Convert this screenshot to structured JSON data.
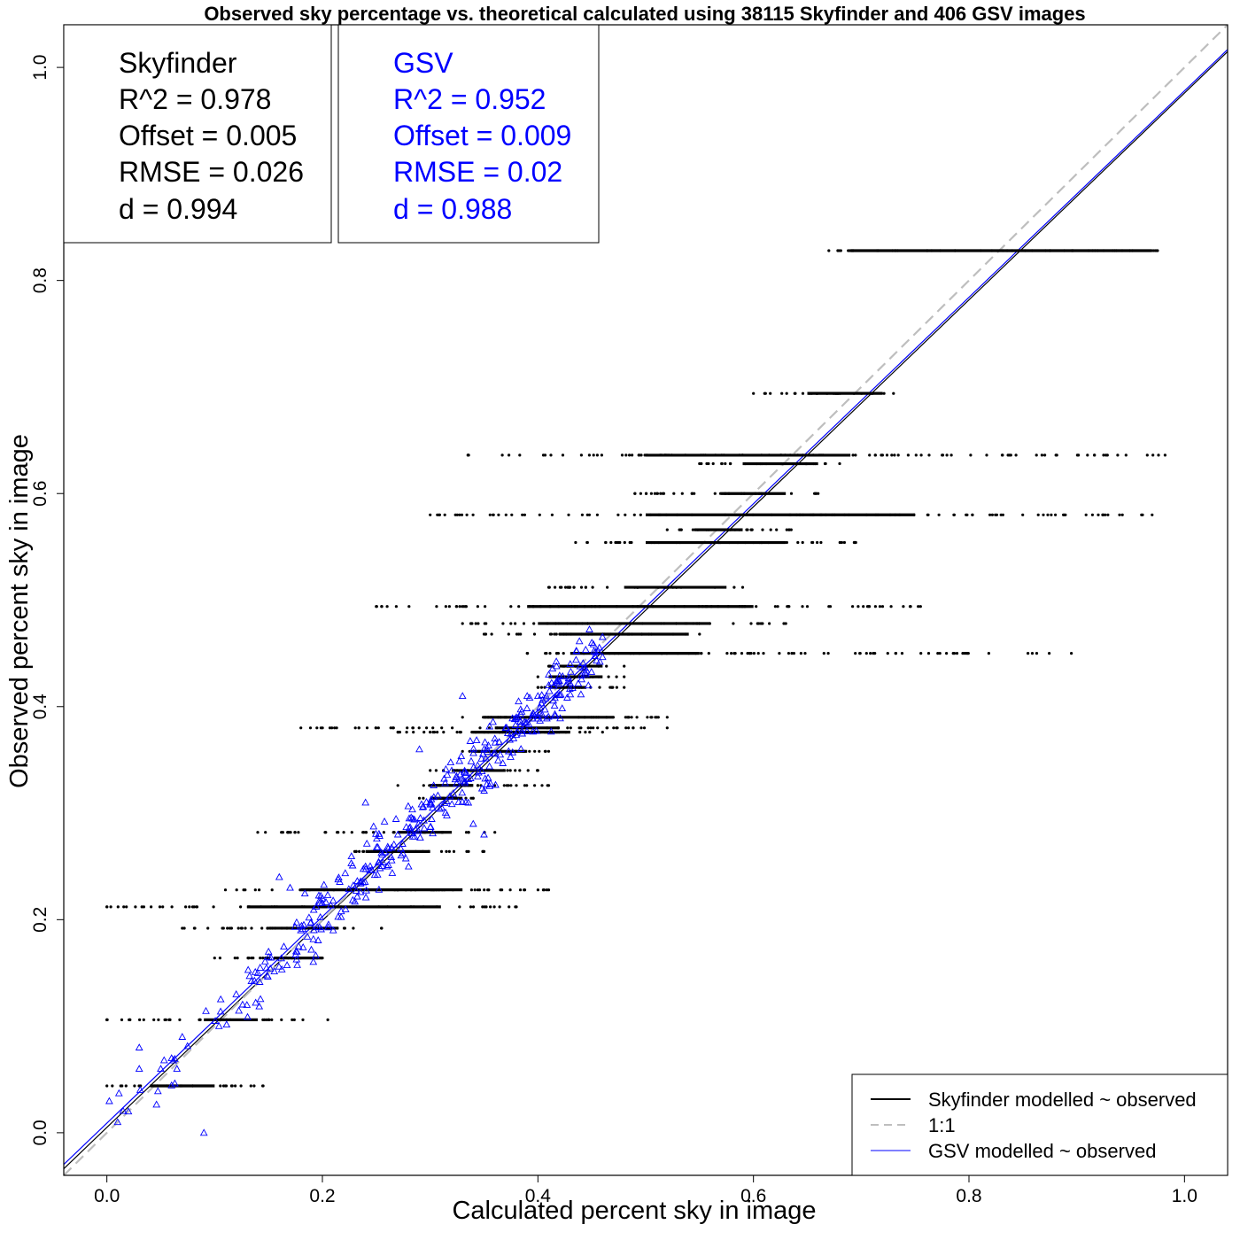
{
  "chart_data": {
    "type": "scatter",
    "title": "Observed sky percentage vs. theoretical calculated using 38115 Skyfinder and 406 GSV images",
    "xlabel": "Calculated percent sky in image",
    "ylabel": "Observed percent sky in image",
    "xlim": [
      -0.04,
      1.04
    ],
    "ylim": [
      -0.04,
      1.04
    ],
    "xticks": [
      0.0,
      0.2,
      0.4,
      0.6,
      0.8,
      1.0
    ],
    "yticks": [
      0.0,
      0.2,
      0.4,
      0.6,
      0.8,
      1.0
    ],
    "xtick_labels": [
      "0.0",
      "0.2",
      "0.4",
      "0.6",
      "0.8",
      "1.0"
    ],
    "ytick_labels": [
      "0.0",
      "0.2",
      "0.4",
      "0.6",
      "0.8",
      "1.0"
    ],
    "grid": false,
    "stat_boxes": [
      {
        "name": "Skyfinder",
        "color": "#000000",
        "lines": [
          "Skyfinder",
          "R^2 = 0.978",
          "Offset = 0.005",
          "RMSE = 0.026",
          "d = 0.994"
        ]
      },
      {
        "name": "GSV",
        "color": "#0000ff",
        "lines": [
          "GSV",
          "R^2 = 0.952",
          "Offset = 0.009",
          "RMSE = 0.02",
          "d = 0.988"
        ]
      }
    ],
    "legend": {
      "position": "bottom-right",
      "entries": [
        {
          "label": "Skyfinder modelled ~ observed",
          "color": "#000000",
          "style": "solid"
        },
        {
          "label": "1:1",
          "color": "#bebebe",
          "style": "dashed"
        },
        {
          "label": "GSV modelled ~ observed",
          "color": "#0000ff",
          "style": "solid"
        }
      ]
    },
    "reference_lines": [
      {
        "name": "Skyfinder modelled ~ observed",
        "color": "#000000",
        "style": "solid",
        "intercept": 0.005,
        "slope": 0.971
      },
      {
        "name": "1:1",
        "color": "#bebebe",
        "style": "dashed",
        "intercept": 0.0,
        "slope": 1.0
      },
      {
        "name": "GSV modelled ~ observed",
        "color": "#0000ff",
        "style": "solid",
        "intercept": 0.009,
        "slope": 0.969
      }
    ],
    "series": [
      {
        "name": "Skyfinder",
        "marker": "dot",
        "color": "#000000",
        "horizontal_bands": [
          {
            "y": 0.828,
            "x_min": 0.67,
            "x_max": 0.975,
            "dense_min": 0.69,
            "dense_max": 0.97
          },
          {
            "y": 0.694,
            "x_min": 0.6,
            "x_max": 0.73,
            "dense_min": 0.65,
            "dense_max": 0.72
          },
          {
            "y": 0.636,
            "x_min": 0.335,
            "x_max": 0.982,
            "dense_min": 0.5,
            "dense_max": 0.69
          },
          {
            "y": 0.628,
            "x_min": 0.55,
            "x_max": 0.68,
            "dense_min": 0.59,
            "dense_max": 0.66
          },
          {
            "y": 0.6,
            "x_min": 0.49,
            "x_max": 0.66,
            "dense_min": 0.57,
            "dense_max": 0.63
          },
          {
            "y": 0.58,
            "x_min": 0.3,
            "x_max": 0.97,
            "dense_min": 0.5,
            "dense_max": 0.75
          },
          {
            "y": 0.566,
            "x_min": 0.52,
            "x_max": 0.635,
            "dense_min": 0.545,
            "dense_max": 0.59
          },
          {
            "y": 0.554,
            "x_min": 0.435,
            "x_max": 0.695,
            "dense_min": 0.5,
            "dense_max": 0.63
          },
          {
            "y": 0.512,
            "x_min": 0.41,
            "x_max": 0.59,
            "dense_min": 0.48,
            "dense_max": 0.575
          },
          {
            "y": 0.494,
            "x_min": 0.25,
            "x_max": 0.755,
            "dense_min": 0.39,
            "dense_max": 0.6
          },
          {
            "y": 0.478,
            "x_min": 0.33,
            "x_max": 0.63,
            "dense_min": 0.4,
            "dense_max": 0.56
          },
          {
            "y": 0.468,
            "x_min": 0.35,
            "x_max": 0.55,
            "dense_min": 0.42,
            "dense_max": 0.54
          },
          {
            "y": 0.45,
            "x_min": 0.39,
            "x_max": 0.895,
            "dense_min": 0.43,
            "dense_max": 0.55
          },
          {
            "y": 0.438,
            "x_min": 0.41,
            "x_max": 0.48,
            "dense_min": 0.42,
            "dense_max": 0.46
          },
          {
            "y": 0.428,
            "x_min": 0.4,
            "x_max": 0.48,
            "dense_min": 0.41,
            "dense_max": 0.46
          },
          {
            "y": 0.418,
            "x_min": 0.4,
            "x_max": 0.48,
            "dense_min": 0.41,
            "dense_max": 0.445
          },
          {
            "y": 0.39,
            "x_min": 0.33,
            "x_max": 0.52,
            "dense_min": 0.35,
            "dense_max": 0.47
          },
          {
            "y": 0.38,
            "x_min": 0.18,
            "x_max": 0.52,
            "dense_min": 0.36,
            "dense_max": 0.42
          },
          {
            "y": 0.376,
            "x_min": 0.27,
            "x_max": 0.46,
            "dense_min": 0.34,
            "dense_max": 0.43
          },
          {
            "y": 0.358,
            "x_min": 0.33,
            "x_max": 0.41,
            "dense_min": 0.34,
            "dense_max": 0.39
          },
          {
            "y": 0.34,
            "x_min": 0.3,
            "x_max": 0.4,
            "dense_min": 0.32,
            "dense_max": 0.37
          },
          {
            "y": 0.326,
            "x_min": 0.27,
            "x_max": 0.41,
            "dense_min": 0.3,
            "dense_max": 0.34
          },
          {
            "y": 0.314,
            "x_min": 0.29,
            "x_max": 0.34,
            "dense_min": 0.3,
            "dense_max": 0.33
          },
          {
            "y": 0.282,
            "x_min": 0.14,
            "x_max": 0.36,
            "dense_min": 0.27,
            "dense_max": 0.32
          },
          {
            "y": 0.264,
            "x_min": 0.23,
            "x_max": 0.35,
            "dense_min": 0.24,
            "dense_max": 0.3
          },
          {
            "y": 0.228,
            "x_min": 0.11,
            "x_max": 0.41,
            "dense_min": 0.18,
            "dense_max": 0.33
          },
          {
            "y": 0.212,
            "x_min": 0.0,
            "x_max": 0.38,
            "dense_min": 0.13,
            "dense_max": 0.31
          },
          {
            "y": 0.192,
            "x_min": 0.07,
            "x_max": 0.255,
            "dense_min": 0.15,
            "dense_max": 0.215
          },
          {
            "y": 0.164,
            "x_min": 0.1,
            "x_max": 0.2,
            "dense_min": 0.155,
            "dense_max": 0.2
          },
          {
            "y": 0.106,
            "x_min": 0.0,
            "x_max": 0.205,
            "dense_min": 0.09,
            "dense_max": 0.14
          },
          {
            "y": 0.044,
            "x_min": 0.0,
            "x_max": 0.145,
            "dense_min": 0.04,
            "dense_max": 0.1
          }
        ]
      },
      {
        "name": "GSV",
        "marker": "triangle",
        "color": "#0000ff",
        "count": 406,
        "x_range": [
          0.0,
          0.46
        ],
        "points_sample": [
          [
            0.09,
            0.0
          ],
          [
            0.01,
            0.01
          ],
          [
            0.02,
            0.02
          ],
          [
            0.03,
            0.06
          ],
          [
            0.03,
            0.08
          ],
          [
            0.05,
            0.06
          ],
          [
            0.06,
            0.07
          ],
          [
            0.065,
            0.06
          ],
          [
            0.07,
            0.09
          ],
          [
            0.12,
            0.13
          ],
          [
            0.13,
            0.12
          ],
          [
            0.14,
            0.15
          ],
          [
            0.15,
            0.17
          ],
          [
            0.16,
            0.24
          ],
          [
            0.17,
            0.23
          ],
          [
            0.18,
            0.19
          ],
          [
            0.2,
            0.22
          ],
          [
            0.21,
            0.19
          ],
          [
            0.24,
            0.25
          ],
          [
            0.24,
            0.31
          ],
          [
            0.26,
            0.25
          ],
          [
            0.27,
            0.28
          ],
          [
            0.28,
            0.25
          ],
          [
            0.3,
            0.31
          ],
          [
            0.32,
            0.34
          ],
          [
            0.33,
            0.33
          ],
          [
            0.34,
            0.29
          ],
          [
            0.35,
            0.36
          ],
          [
            0.36,
            0.37
          ],
          [
            0.37,
            0.38
          ],
          [
            0.38,
            0.39
          ],
          [
            0.39,
            0.41
          ],
          [
            0.41,
            0.42
          ],
          [
            0.43,
            0.44
          ],
          [
            0.45,
            0.46
          ],
          [
            0.41,
            0.43
          ],
          [
            0.4,
            0.41
          ],
          [
            0.33,
            0.41
          ],
          [
            0.35,
            0.28
          ],
          [
            0.29,
            0.36
          ]
        ]
      }
    ]
  }
}
